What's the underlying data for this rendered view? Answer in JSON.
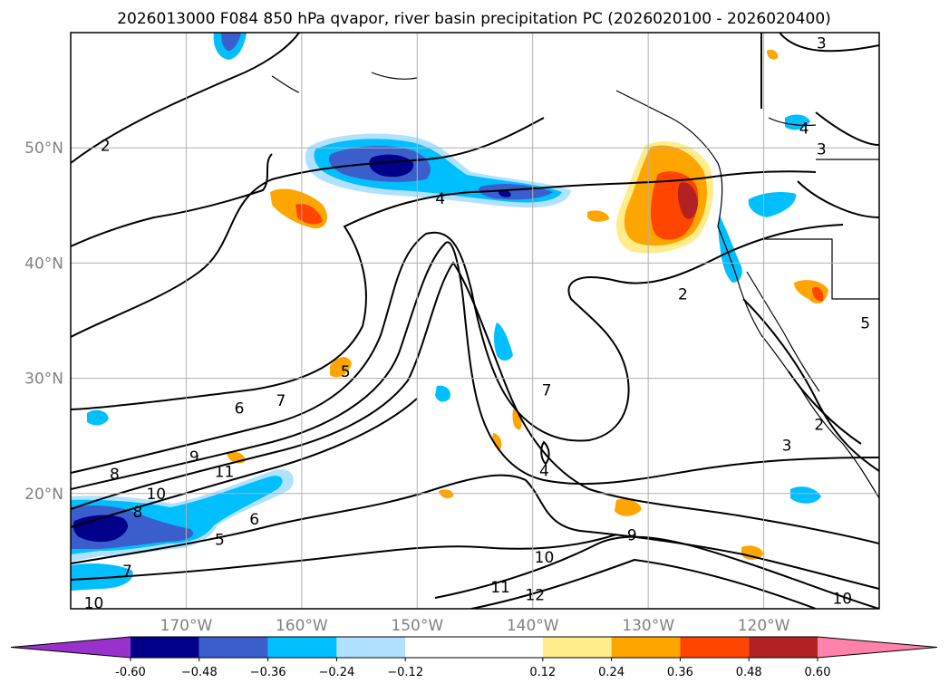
{
  "chart_data": {
    "type": "map-contour",
    "title": "2026013000 F084 850 hPa qvapor, river basin precipitation PC (2026020100 - 2026020400)",
    "lon_range": [
      -180,
      -110
    ],
    "lat_range": [
      10,
      60
    ],
    "lat_ticks": [
      {
        "value": 20,
        "label": "20°N"
      },
      {
        "value": 30,
        "label": "30°N"
      },
      {
        "value": 40,
        "label": "40°N"
      },
      {
        "value": 50,
        "label": "50°N"
      }
    ],
    "lon_ticks": [
      {
        "value": -170,
        "label": "170°W"
      },
      {
        "value": -160,
        "label": "160°W"
      },
      {
        "value": -150,
        "label": "150°W"
      },
      {
        "value": -140,
        "label": "140°W"
      },
      {
        "value": -130,
        "label": "130°W"
      },
      {
        "value": -120,
        "label": "120°W"
      }
    ],
    "colorbar": {
      "boundaries": [
        -0.72,
        -0.6,
        -0.48,
        -0.36,
        -0.24,
        -0.12,
        0.12,
        0.24,
        0.36,
        0.48,
        0.6,
        0.72
      ],
      "tick_labels": [
        "-0.60",
        "−0.48",
        "−0.36",
        "−0.24",
        "−0.12",
        "0.12",
        "0.24",
        "0.36",
        "0.48",
        "0.60"
      ],
      "colors": [
        "#9932CC",
        "#00008B",
        "#3A5FCD",
        "#00BFFF",
        "#B0E2FF",
        "#FFFFFF",
        "#FFEC8B",
        "#FFA500",
        "#FF4500",
        "#B22222",
        "#FF82AB"
      ]
    },
    "contour_labels": [
      {
        "text": "2",
        "lon": -177,
        "lat": 50.2
      },
      {
        "text": "4",
        "lon": -148,
        "lat": 45.6
      },
      {
        "text": "2",
        "lon": -127,
        "lat": 37.3
      },
      {
        "text": "3",
        "lon": -115,
        "lat": 59.1
      },
      {
        "text": "4",
        "lon": -116.5,
        "lat": 51.7
      },
      {
        "text": "3",
        "lon": -115,
        "lat": 49.9
      },
      {
        "text": "5",
        "lon": -111.2,
        "lat": 34.8
      },
      {
        "text": "5",
        "lon": -156.2,
        "lat": 30.6
      },
      {
        "text": "6",
        "lon": -165.4,
        "lat": 27.4
      },
      {
        "text": "7",
        "lon": -161.8,
        "lat": 28.1
      },
      {
        "text": "9",
        "lon": -169.3,
        "lat": 23.2
      },
      {
        "text": "8",
        "lon": -176.2,
        "lat": 21.7
      },
      {
        "text": "11",
        "lon": -166.7,
        "lat": 21.9
      },
      {
        "text": "10",
        "lon": -172.6,
        "lat": 20.0
      },
      {
        "text": "8",
        "lon": -174.2,
        "lat": 18.4
      },
      {
        "text": "6",
        "lon": -164.1,
        "lat": 17.8
      },
      {
        "text": "5",
        "lon": -167.1,
        "lat": 16.0
      },
      {
        "text": "7",
        "lon": -175.1,
        "lat": 13.3
      },
      {
        "text": "10",
        "lon": -178,
        "lat": 10.5
      },
      {
        "text": "7",
        "lon": -138.8,
        "lat": 29.0
      },
      {
        "text": "4",
        "lon": -139.0,
        "lat": 22.0
      },
      {
        "text": "2",
        "lon": -115.2,
        "lat": 26.0
      },
      {
        "text": "3",
        "lon": -118.0,
        "lat": 24.2
      },
      {
        "text": "9",
        "lon": -131.4,
        "lat": 16.4
      },
      {
        "text": "10",
        "lon": -139.0,
        "lat": 14.5
      },
      {
        "text": "11",
        "lon": -142.8,
        "lat": 11.9
      },
      {
        "text": "12",
        "lon": -139.8,
        "lat": 11.2
      },
      {
        "text": "10",
        "lon": -113.2,
        "lat": 10.9
      }
    ]
  }
}
